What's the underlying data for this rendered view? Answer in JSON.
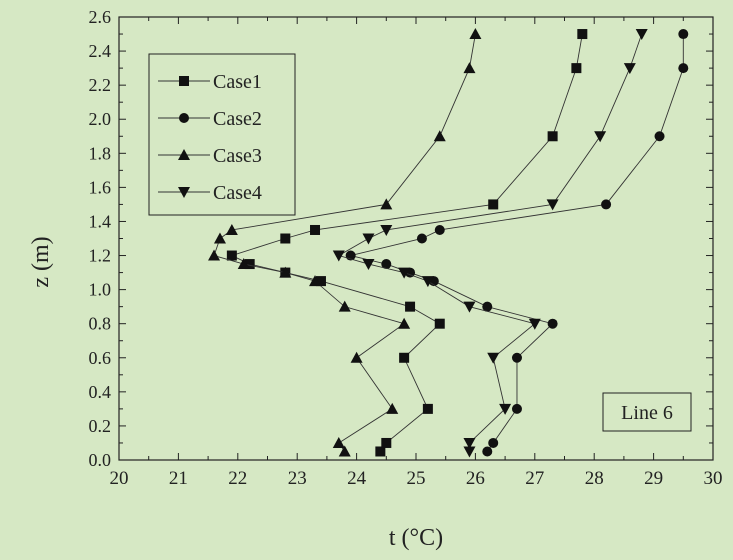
{
  "chart_data": {
    "type": "line",
    "xlabel": "t (°C)",
    "ylabel": "z (m)",
    "xlim": [
      20,
      30
    ],
    "ylim": [
      0.0,
      2.6
    ],
    "xticks": [
      "20",
      "21",
      "22",
      "23",
      "24",
      "25",
      "26",
      "27",
      "28",
      "29",
      "30"
    ],
    "yticks": [
      "0.0",
      "0.2",
      "0.4",
      "0.6",
      "0.8",
      "1.0",
      "1.2",
      "1.4",
      "1.6",
      "1.8",
      "2.0",
      "2.2",
      "2.4",
      "2.6"
    ],
    "annotation": "Line 6",
    "legend_position": "top-left",
    "line_color": "#333333",
    "series": [
      {
        "name": "Case1",
        "marker": "square",
        "points": [
          [
            24.4,
            0.05
          ],
          [
            24.5,
            0.1
          ],
          [
            25.2,
            0.3
          ],
          [
            24.8,
            0.6
          ],
          [
            25.4,
            0.8
          ],
          [
            24.9,
            0.9
          ],
          [
            23.4,
            1.05
          ],
          [
            22.8,
            1.1
          ],
          [
            22.2,
            1.15
          ],
          [
            21.9,
            1.2
          ],
          [
            22.8,
            1.3
          ],
          [
            23.3,
            1.35
          ],
          [
            26.3,
            1.5
          ],
          [
            27.3,
            1.9
          ],
          [
            27.7,
            2.3
          ],
          [
            27.8,
            2.5
          ]
        ]
      },
      {
        "name": "Case2",
        "marker": "circle",
        "points": [
          [
            26.2,
            0.05
          ],
          [
            26.3,
            0.1
          ],
          [
            26.7,
            0.3
          ],
          [
            26.7,
            0.6
          ],
          [
            27.3,
            0.8
          ],
          [
            26.2,
            0.9
          ],
          [
            25.3,
            1.05
          ],
          [
            24.9,
            1.1
          ],
          [
            24.5,
            1.15
          ],
          [
            23.9,
            1.2
          ],
          [
            25.1,
            1.3
          ],
          [
            25.4,
            1.35
          ],
          [
            28.2,
            1.5
          ],
          [
            29.1,
            1.9
          ],
          [
            29.5,
            2.3
          ],
          [
            29.5,
            2.5
          ]
        ]
      },
      {
        "name": "Case3",
        "marker": "triangle-up",
        "points": [
          [
            23.8,
            0.05
          ],
          [
            23.7,
            0.1
          ],
          [
            24.6,
            0.3
          ],
          [
            24.0,
            0.6
          ],
          [
            24.8,
            0.8
          ],
          [
            23.8,
            0.9
          ],
          [
            23.3,
            1.05
          ],
          [
            22.8,
            1.1
          ],
          [
            22.1,
            1.15
          ],
          [
            21.6,
            1.2
          ],
          [
            21.7,
            1.3
          ],
          [
            21.9,
            1.35
          ],
          [
            24.5,
            1.5
          ],
          [
            25.4,
            1.9
          ],
          [
            25.9,
            2.3
          ],
          [
            26.0,
            2.5
          ]
        ]
      },
      {
        "name": "Case4",
        "marker": "triangle-down",
        "points": [
          [
            25.9,
            0.05
          ],
          [
            25.9,
            0.1
          ],
          [
            26.5,
            0.3
          ],
          [
            26.3,
            0.6
          ],
          [
            27.0,
            0.8
          ],
          [
            25.9,
            0.9
          ],
          [
            25.2,
            1.05
          ],
          [
            24.8,
            1.1
          ],
          [
            24.2,
            1.15
          ],
          [
            23.7,
            1.2
          ],
          [
            24.2,
            1.3
          ],
          [
            24.5,
            1.35
          ],
          [
            27.3,
            1.5
          ],
          [
            28.1,
            1.9
          ],
          [
            28.6,
            2.3
          ],
          [
            28.8,
            2.5
          ]
        ]
      }
    ]
  }
}
